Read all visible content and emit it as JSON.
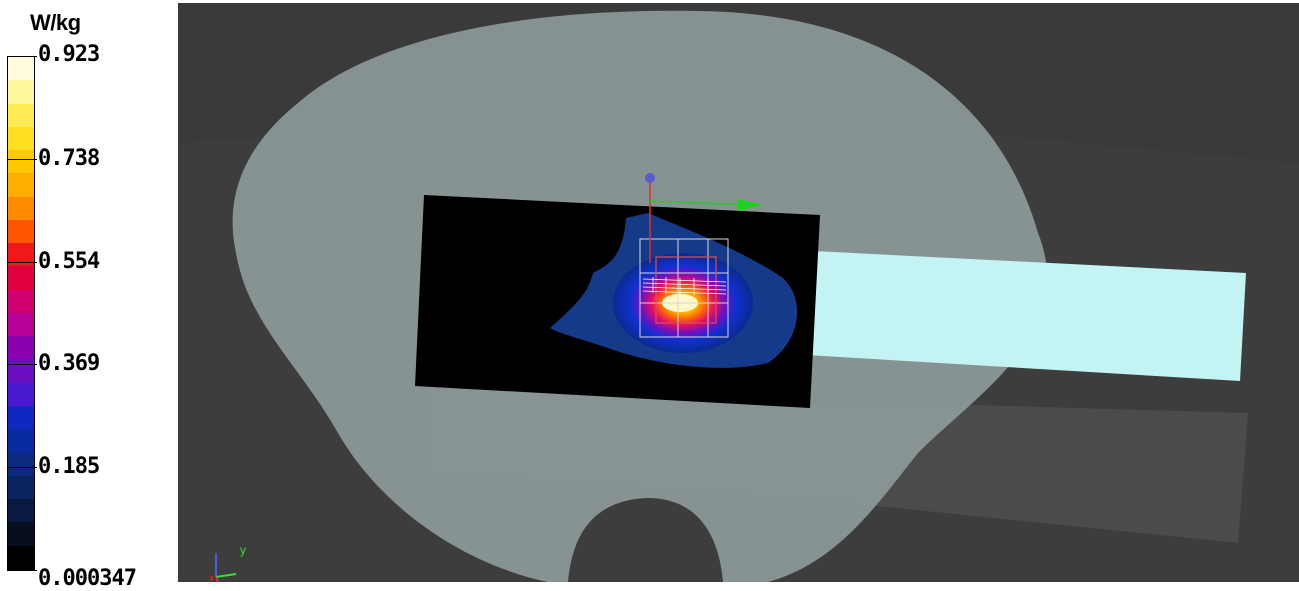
{
  "colorbar": {
    "unit": "W/kg",
    "max_value": 0.923,
    "ticks": [
      "0.923",
      "0.738",
      "0.554",
      "0.369",
      "0.185",
      "0.000347"
    ],
    "colors": [
      "#fffbdc",
      "#fff59a",
      "#ffec55",
      "#ffe020",
      "#ffc800",
      "#ffae00",
      "#ff8a00",
      "#ff5500",
      "#f01818",
      "#e00040",
      "#d00070",
      "#b8009a",
      "#8a00b0",
      "#6a10c0",
      "#4a18d0",
      "#1028c0",
      "#0a2aa0",
      "#0a2a80",
      "#0a2460",
      "#081a40",
      "#060e20",
      "#000000"
    ]
  },
  "viewport": {
    "background": "#3d3d3d",
    "phantom_color": "#8d999a",
    "arm_color": "#c4f3f4",
    "axis_labels": {
      "y": "y",
      "x": "x"
    }
  }
}
